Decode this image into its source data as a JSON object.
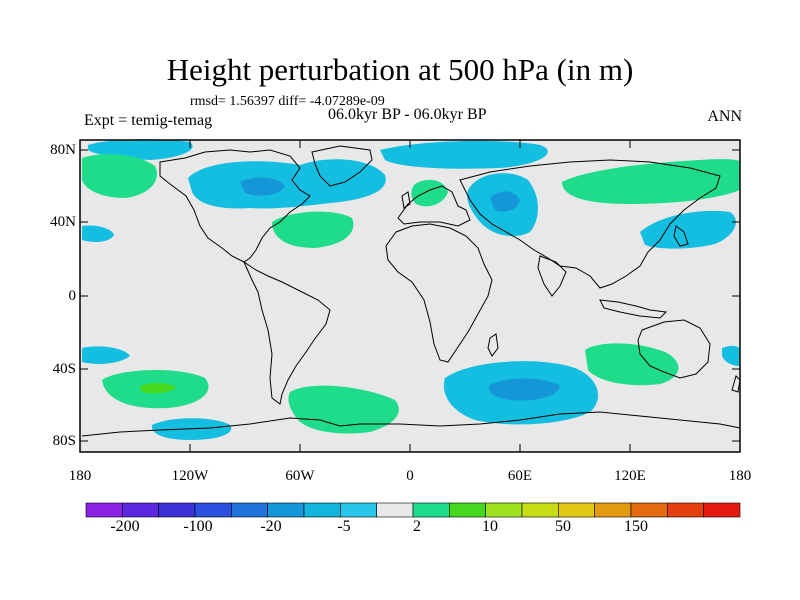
{
  "header": {
    "title": "Height perturbation at 500 hPa (in m)",
    "stats": "rmsd= 1.56397 diff= -4.07289e-09",
    "experiment": "Expt = temig-temag",
    "period": "06.0kyr BP - 06.0kyr BP",
    "season": "ANN"
  },
  "axes": {
    "lat_labels": [
      "80N",
      "40N",
      "0",
      "40S",
      "80S"
    ],
    "lon_labels": [
      "180",
      "120W",
      "60W",
      "0",
      "60E",
      "120E",
      "180"
    ]
  },
  "colorbar": {
    "labels": [
      "-200",
      "-100",
      "-20",
      "-5",
      "2",
      "10",
      "50",
      "150"
    ],
    "colors": [
      "#8a22e6",
      "#5b27e0",
      "#3a30d8",
      "#2b4fde",
      "#1f74dc",
      "#1496d8",
      "#14b4dc",
      "#28c6e8",
      "#e8e8e8",
      "#1fdc8a",
      "#46d81e",
      "#9ce21e",
      "#c8dc16",
      "#e2c814",
      "#e49a10",
      "#e46a10",
      "#e4400e",
      "#e41a0e"
    ]
  },
  "map_data": {
    "background_color": "#e8e8e8",
    "positive_color": "#1fdc8a",
    "negative_color": "#14bee0",
    "strong_negative_color": "#1496d8",
    "strong_positive_color": "#46d81e"
  }
}
